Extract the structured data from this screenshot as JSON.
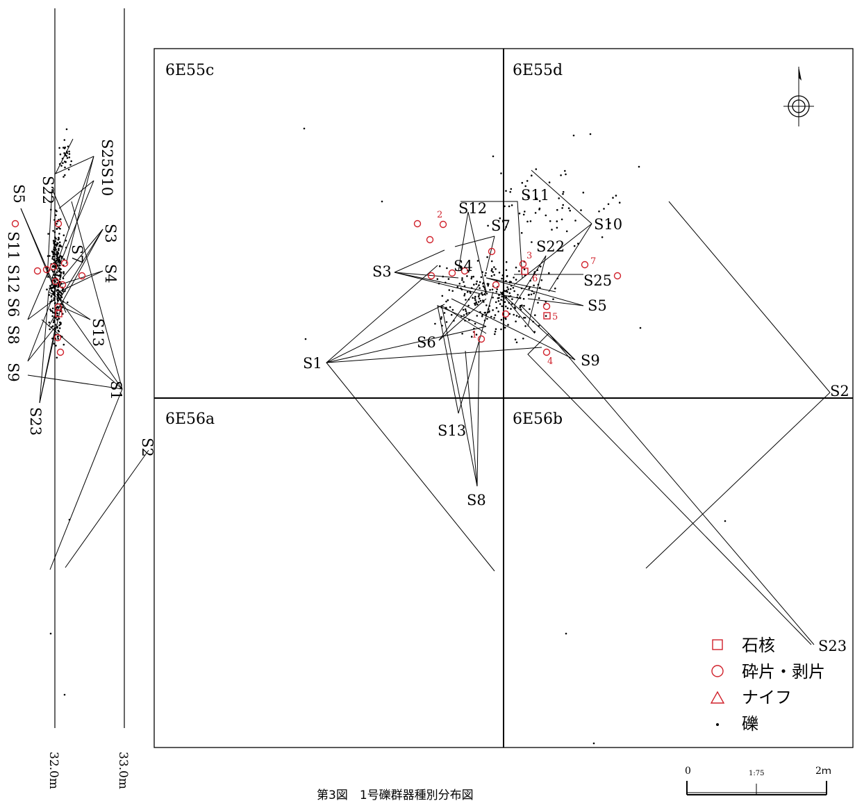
{
  "caption": "第3図　1号礫群器種別分布図",
  "grid_labels": {
    "c": "6E55c",
    "d": "6E55d",
    "a": "6E56a",
    "b": "6E56b"
  },
  "legend": [
    {
      "symbol": "square",
      "label": "石核",
      "color": "#d0202a"
    },
    {
      "symbol": "circle",
      "label": "砕片・剥片",
      "color": "#d0202a"
    },
    {
      "symbol": "triangle",
      "label": "ナイフ",
      "color": "#d0202a"
    },
    {
      "symbol": "dot",
      "label": "礫",
      "color": "#000000"
    }
  ],
  "scale_bar": {
    "start": "0",
    "ratio": "1:75",
    "end": "2ｍ"
  },
  "section_axis": {
    "left": "32.0m",
    "right": "33.0m"
  },
  "plan_labels": [
    "S1",
    "S2",
    "S3",
    "S4",
    "S5",
    "S6",
    "S7",
    "S8",
    "S9",
    "S10",
    "S11",
    "S12",
    "S13",
    "S22",
    "S23",
    "S25"
  ],
  "artifact_numbers": [
    "1",
    "2",
    "3",
    "4",
    "5",
    "6",
    "7"
  ],
  "section_labels": [
    "S25S10",
    "S22",
    "S5",
    "S3",
    "S4",
    "S7",
    "S1",
    "S2",
    "S13",
    "S11 S12 S6",
    "S8",
    "S9",
    "S23"
  ]
}
